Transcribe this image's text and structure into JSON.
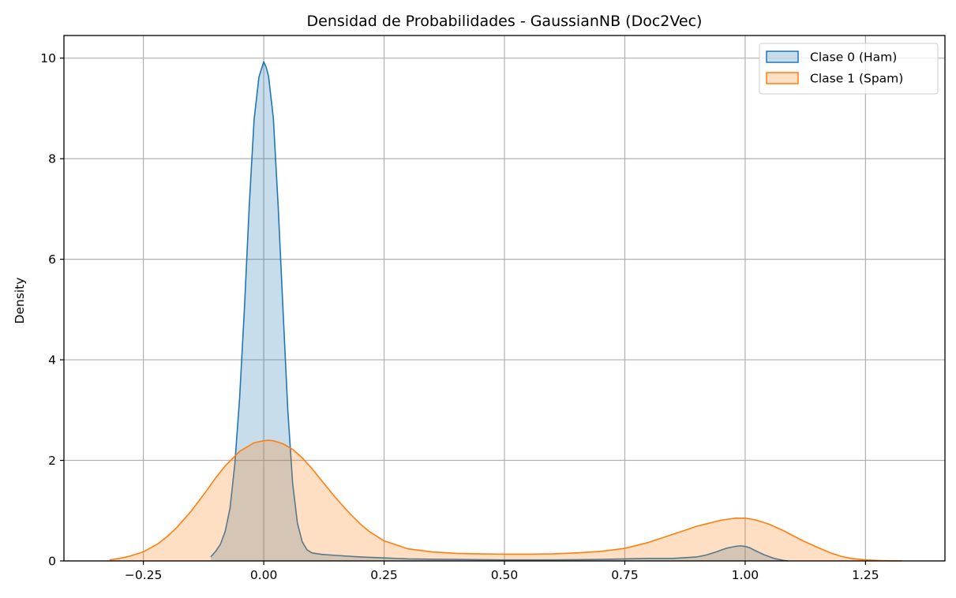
{
  "chart_data": {
    "type": "area",
    "title": "Densidad de Probabilidades - GaussianNB (Doc2Vec)",
    "xlabel": "",
    "ylabel": "Density",
    "xlim": [
      -0.415,
      1.415
    ],
    "ylim": [
      0,
      10.45
    ],
    "xticks": [
      -0.25,
      0.0,
      0.25,
      0.5,
      0.75,
      1.0,
      1.25
    ],
    "xtick_labels": [
      "−0.25",
      "0.00",
      "0.25",
      "0.50",
      "0.75",
      "1.00",
      "1.25"
    ],
    "yticks": [
      0,
      2,
      4,
      6,
      8,
      10
    ],
    "ytick_labels": [
      "0",
      "2",
      "4",
      "6",
      "8",
      "10"
    ],
    "grid": true,
    "legend_position": "top-right",
    "series": [
      {
        "name": "Clase 0 (Ham)",
        "line_color": "#1f77b4",
        "fill_color": "#1f77b4",
        "x": [
          -0.11,
          -0.1,
          -0.09,
          -0.08,
          -0.07,
          -0.06,
          -0.05,
          -0.04,
          -0.03,
          -0.02,
          -0.01,
          0.0,
          0.005,
          0.01,
          0.02,
          0.03,
          0.04,
          0.05,
          0.06,
          0.07,
          0.08,
          0.09,
          0.1,
          0.12,
          0.15,
          0.2,
          0.25,
          0.3,
          0.35,
          0.4,
          0.45,
          0.5,
          0.55,
          0.6,
          0.65,
          0.7,
          0.75,
          0.8,
          0.85,
          0.9,
          0.92,
          0.94,
          0.96,
          0.98,
          0.99,
          1.0,
          1.01,
          1.02,
          1.04,
          1.06,
          1.08,
          1.09
        ],
        "y": [
          0.08,
          0.19,
          0.33,
          0.59,
          1.05,
          1.93,
          3.25,
          5.04,
          7.08,
          8.78,
          9.62,
          9.93,
          9.82,
          9.64,
          8.8,
          7.05,
          5.0,
          3.0,
          1.55,
          0.75,
          0.38,
          0.22,
          0.16,
          0.13,
          0.11,
          0.08,
          0.06,
          0.04,
          0.035,
          0.03,
          0.025,
          0.02,
          0.02,
          0.02,
          0.025,
          0.03,
          0.04,
          0.05,
          0.05,
          0.08,
          0.12,
          0.18,
          0.25,
          0.29,
          0.3,
          0.29,
          0.26,
          0.21,
          0.12,
          0.05,
          0.01,
          0.0
        ]
      },
      {
        "name": "Clase 1 (Spam)",
        "line_color": "#ff7f0e",
        "fill_color": "#ff7f0e",
        "x": [
          -0.32,
          -0.3,
          -0.28,
          -0.25,
          -0.22,
          -0.2,
          -0.18,
          -0.15,
          -0.12,
          -0.1,
          -0.08,
          -0.05,
          -0.02,
          0.0,
          0.01,
          0.02,
          0.04,
          0.06,
          0.08,
          0.1,
          0.12,
          0.15,
          0.18,
          0.2,
          0.22,
          0.25,
          0.3,
          0.35,
          0.4,
          0.45,
          0.5,
          0.55,
          0.6,
          0.65,
          0.7,
          0.75,
          0.8,
          0.85,
          0.9,
          0.95,
          0.98,
          1.0,
          1.02,
          1.05,
          1.08,
          1.1,
          1.12,
          1.15,
          1.18,
          1.2,
          1.22,
          1.25,
          1.28,
          1.3,
          1.325
        ],
        "y": [
          0.02,
          0.05,
          0.09,
          0.18,
          0.34,
          0.49,
          0.67,
          1.0,
          1.38,
          1.65,
          1.89,
          2.18,
          2.35,
          2.39,
          2.4,
          2.39,
          2.33,
          2.22,
          2.05,
          1.84,
          1.6,
          1.25,
          0.93,
          0.74,
          0.58,
          0.4,
          0.24,
          0.18,
          0.15,
          0.14,
          0.135,
          0.135,
          0.14,
          0.16,
          0.19,
          0.25,
          0.37,
          0.53,
          0.69,
          0.81,
          0.85,
          0.85,
          0.82,
          0.73,
          0.6,
          0.5,
          0.4,
          0.27,
          0.15,
          0.09,
          0.05,
          0.02,
          0.008,
          0.003,
          0.0
        ]
      }
    ]
  }
}
